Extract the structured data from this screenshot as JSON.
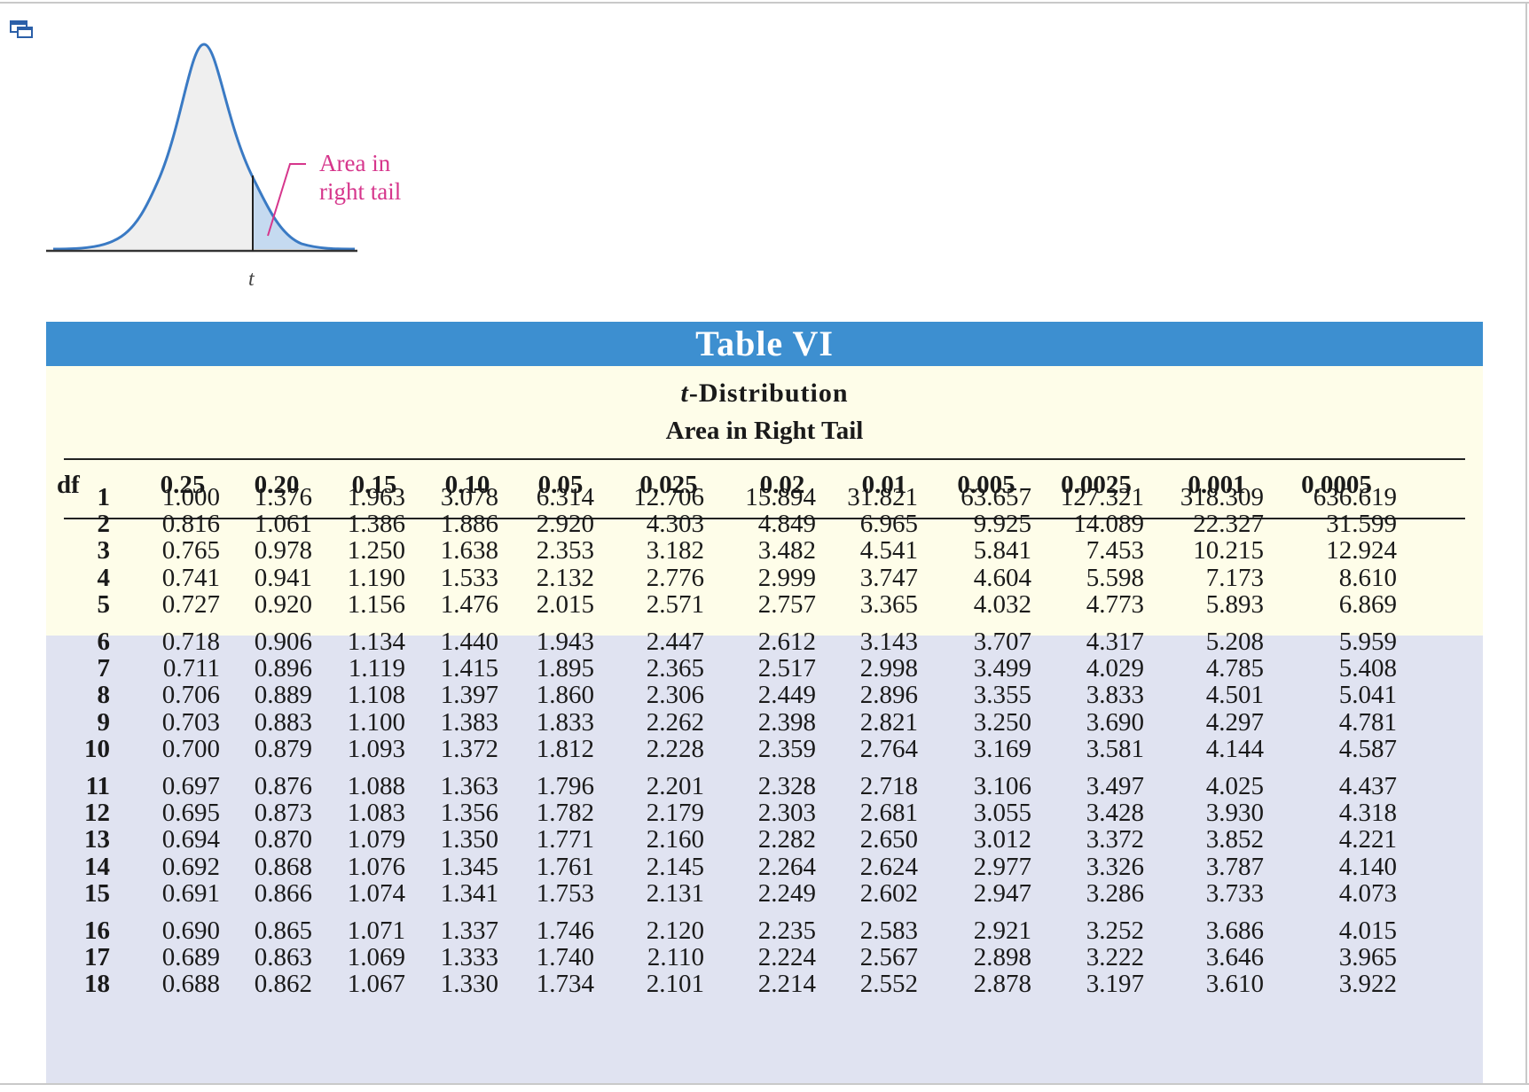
{
  "figure": {
    "annotation_line1": "Area in",
    "annotation_line2": "right tail",
    "axis_label": "t"
  },
  "table": {
    "title": "Table VI",
    "subtitle_italic": "t",
    "subtitle_rest": "-Distribution",
    "subtitle2": "Area in Right Tail",
    "columns": [
      "df",
      "0.25",
      "0.20",
      "0.15",
      "0.10",
      "0.05",
      "0.025",
      "0.02",
      "0.01",
      "0.005",
      "0.0025",
      "0.001",
      "0.0005"
    ],
    "rows": [
      [
        "1",
        "1.000",
        "1.376",
        "1.963",
        "3.078",
        "6.314",
        "12.706",
        "15.894",
        "31.821",
        "63.657",
        "127.321",
        "318.309",
        "636.619"
      ],
      [
        "2",
        "0.816",
        "1.061",
        "1.386",
        "1.886",
        "2.920",
        "4.303",
        "4.849",
        "6.965",
        "9.925",
        "14.089",
        "22.327",
        "31.599"
      ],
      [
        "3",
        "0.765",
        "0.978",
        "1.250",
        "1.638",
        "2.353",
        "3.182",
        "3.482",
        "4.541",
        "5.841",
        "7.453",
        "10.215",
        "12.924"
      ],
      [
        "4",
        "0.741",
        "0.941",
        "1.190",
        "1.533",
        "2.132",
        "2.776",
        "2.999",
        "3.747",
        "4.604",
        "5.598",
        "7.173",
        "8.610"
      ],
      [
        "5",
        "0.727",
        "0.920",
        "1.156",
        "1.476",
        "2.015",
        "2.571",
        "2.757",
        "3.365",
        "4.032",
        "4.773",
        "5.893",
        "6.869"
      ],
      [
        "6",
        "0.718",
        "0.906",
        "1.134",
        "1.440",
        "1.943",
        "2.447",
        "2.612",
        "3.143",
        "3.707",
        "4.317",
        "5.208",
        "5.959"
      ],
      [
        "7",
        "0.711",
        "0.896",
        "1.119",
        "1.415",
        "1.895",
        "2.365",
        "2.517",
        "2.998",
        "3.499",
        "4.029",
        "4.785",
        "5.408"
      ],
      [
        "8",
        "0.706",
        "0.889",
        "1.108",
        "1.397",
        "1.860",
        "2.306",
        "2.449",
        "2.896",
        "3.355",
        "3.833",
        "4.501",
        "5.041"
      ],
      [
        "9",
        "0.703",
        "0.883",
        "1.100",
        "1.383",
        "1.833",
        "2.262",
        "2.398",
        "2.821",
        "3.250",
        "3.690",
        "4.297",
        "4.781"
      ],
      [
        "10",
        "0.700",
        "0.879",
        "1.093",
        "1.372",
        "1.812",
        "2.228",
        "2.359",
        "2.764",
        "3.169",
        "3.581",
        "4.144",
        "4.587"
      ],
      [
        "11",
        "0.697",
        "0.876",
        "1.088",
        "1.363",
        "1.796",
        "2.201",
        "2.328",
        "2.718",
        "3.106",
        "3.497",
        "4.025",
        "4.437"
      ],
      [
        "12",
        "0.695",
        "0.873",
        "1.083",
        "1.356",
        "1.782",
        "2.179",
        "2.303",
        "2.681",
        "3.055",
        "3.428",
        "3.930",
        "4.318"
      ],
      [
        "13",
        "0.694",
        "0.870",
        "1.079",
        "1.350",
        "1.771",
        "2.160",
        "2.282",
        "2.650",
        "3.012",
        "3.372",
        "3.852",
        "4.221"
      ],
      [
        "14",
        "0.692",
        "0.868",
        "1.076",
        "1.345",
        "1.761",
        "2.145",
        "2.264",
        "2.624",
        "2.977",
        "3.326",
        "3.787",
        "4.140"
      ],
      [
        "15",
        "0.691",
        "0.866",
        "1.074",
        "1.341",
        "1.753",
        "2.131",
        "2.249",
        "2.602",
        "2.947",
        "3.286",
        "3.733",
        "4.073"
      ],
      [
        "16",
        "0.690",
        "0.865",
        "1.071",
        "1.337",
        "1.746",
        "2.120",
        "2.235",
        "2.583",
        "2.921",
        "3.252",
        "3.686",
        "4.015"
      ],
      [
        "17",
        "0.689",
        "0.863",
        "1.069",
        "1.333",
        "1.740",
        "2.110",
        "2.224",
        "2.567",
        "2.898",
        "3.222",
        "3.646",
        "3.965"
      ],
      [
        "18",
        "0.688",
        "0.862",
        "1.067",
        "1.330",
        "1.734",
        "2.101",
        "2.214",
        "2.552",
        "2.878",
        "3.197",
        "3.610",
        "3.922"
      ]
    ]
  }
}
